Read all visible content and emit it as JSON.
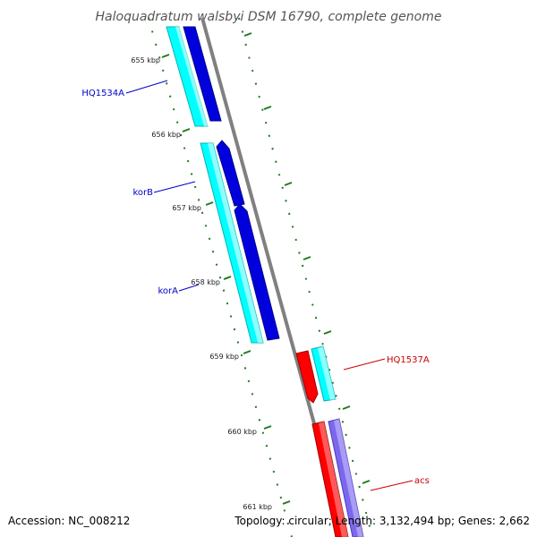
{
  "title": "Haloquadratum walsbyi DSM 16790, complete genome",
  "footer": {
    "accession": "Accession: NC_008212",
    "summary": "Topology: circular; Length: 3,132,494 bp; Genes: 2,662"
  },
  "colors": {
    "backbone": "#808080",
    "tick": "#1f7a1f",
    "cyan_feature": "#00ffff",
    "blue_feature": "#0000dd",
    "red_feature": "#ff0000",
    "purple_feature": "#7b68ee",
    "label_blue": "#0000cc",
    "label_red": "#cc0000"
  },
  "ruler": {
    "tick_labels": [
      "655 kbp",
      "656 kbp",
      "657 kbp",
      "658 kbp",
      "659 kbp",
      "660 kbp",
      "661 kbp"
    ]
  },
  "genes": [
    {
      "label": "HQ1534A",
      "color_role": "label_blue"
    },
    {
      "label": "korB",
      "color_role": "label_blue"
    },
    {
      "label": "korA",
      "color_role": "label_blue"
    },
    {
      "label": "HQ1537A",
      "color_role": "label_red"
    },
    {
      "label": "acs",
      "color_role": "label_red"
    }
  ]
}
